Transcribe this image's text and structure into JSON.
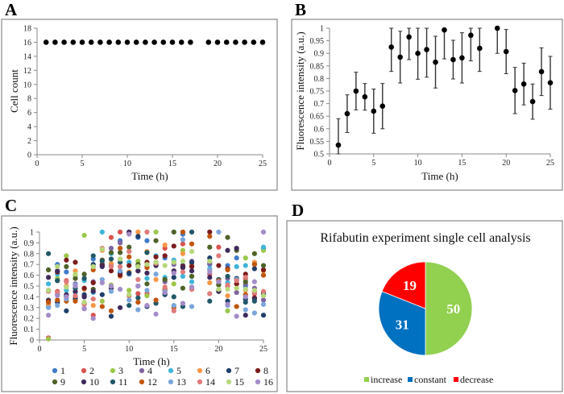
{
  "chart_data": [
    {
      "panel": "A",
      "type": "scatter",
      "xlabel": "Time (h)",
      "ylabel": "Cell count",
      "xlim": [
        0,
        25
      ],
      "ylim": [
        0,
        18
      ],
      "xticks": [
        0,
        5,
        10,
        15,
        20,
        25
      ],
      "yticks": [
        0,
        2,
        4,
        6,
        8,
        10,
        12,
        14,
        16,
        18
      ],
      "x": [
        1,
        2,
        3,
        4,
        5,
        6,
        7,
        8,
        9,
        10,
        11,
        12,
        13,
        14,
        15,
        16,
        17,
        19,
        20,
        21,
        22,
        23,
        24,
        25
      ],
      "y": [
        16,
        16,
        16,
        16,
        16,
        16,
        16,
        16,
        16,
        16,
        16,
        16,
        16,
        16,
        16,
        16,
        16,
        16,
        16,
        16,
        16,
        16,
        16,
        16
      ],
      "color": "#000000"
    },
    {
      "panel": "B",
      "type": "scatter",
      "xlabel": "Time (h)",
      "ylabel": "Fluorescence intensity (a.u.)",
      "xlim": [
        0,
        25
      ],
      "ylim": [
        0.5,
        1
      ],
      "xticks": [
        0,
        5,
        10,
        15,
        20,
        25
      ],
      "yticks": [
        "0.5",
        "0.55",
        "0.6",
        "0.65",
        "0.7",
        "0.75",
        "0.8",
        "0.85",
        "0.9",
        "0.95",
        "1"
      ],
      "x": [
        1,
        2,
        3,
        4,
        5,
        6,
        7,
        8,
        9,
        10,
        11,
        12,
        13,
        14,
        15,
        16,
        17,
        19,
        20,
        21,
        22,
        23,
        24,
        25
      ],
      "y": [
        0.535,
        0.66,
        0.75,
        0.727,
        0.67,
        0.69,
        0.925,
        0.885,
        0.965,
        0.9,
        0.915,
        0.865,
        0.993,
        0.875,
        0.882,
        0.972,
        0.92,
        1.0,
        0.907,
        0.752,
        0.778,
        0.708,
        0.827,
        0.783
      ],
      "error": [
        0.105,
        0.075,
        0.075,
        0.053,
        0.088,
        0.09,
        0.097,
        0.103,
        0.09,
        0.103,
        0.11,
        0.103,
        0.115,
        0.077,
        0.1,
        0.102,
        0.092,
        0.1,
        0.088,
        0.092,
        0.083,
        0.07,
        0.095,
        0.105
      ],
      "color": "#000000"
    },
    {
      "panel": "C",
      "type": "scatter",
      "xlabel": "Time (h)",
      "ylabel": "Fluorescence intensity (a.u.)",
      "xlim": [
        0,
        25
      ],
      "ylim": [
        0,
        1
      ],
      "xticks": [
        0,
        5,
        10,
        15,
        20,
        25
      ],
      "yticks": [
        "0",
        "0.1",
        "0.2",
        "0.3",
        "0.4",
        "0.5",
        "0.6",
        "0.7",
        "0.8",
        "0.9",
        "1"
      ],
      "x": [
        1,
        2,
        3,
        4,
        5,
        6,
        7,
        8,
        9,
        10,
        11,
        12,
        13,
        14,
        15,
        16,
        17,
        19,
        20,
        21,
        22,
        23,
        24,
        25
      ],
      "legend_position": "bottom",
      "series": [
        {
          "name": "1",
          "color": "#3f7bc9",
          "values": [
            0.31,
            0.7,
            0.63,
            0.48,
            0.4,
            0.75,
            0.7,
            0.7,
            0.92,
            0.61,
            0.95,
            0.92,
            0.7,
            0.76,
            0.72,
            0.98,
            0.7,
            0.7,
            0.56,
            0.69,
            0.76,
            0.5,
            0.7,
            0.85
          ]
        },
        {
          "name": "2",
          "color": "#d9534f",
          "values": [
            0.02,
            0.45,
            0.55,
            0.4,
            0.48,
            0.23,
            0.74,
            0.95,
            1.0,
            0.41,
            0.43,
            0.43,
            0.72,
            0.85,
            0.62,
            0.89,
            0.47,
            0.61,
            0.86,
            0.5,
            0.57,
            0.57,
            0.43,
            0.44
          ]
        },
        {
          "name": "3",
          "color": "#9bc74b",
          "values": [
            0.01,
            0.57,
            0.78,
            0.6,
            0.97,
            0.68,
            0.36,
            0.51,
            0.75,
            0.46,
            0.73,
            0.41,
            1.0,
            0.55,
            0.52,
            0.83,
            0.59,
            0.72,
            0.46,
            0.27,
            0.48,
            0.76,
            0.45,
            0.83
          ]
        },
        {
          "name": "4",
          "color": "#8064a2",
          "values": [
            0.46,
            0.42,
            0.41,
            0.52,
            0.29,
            0.54,
            0.69,
            0.85,
            0.9,
            0.99,
            0.5,
            0.68,
            0.72,
            0.54,
            0.7,
            0.67,
            0.73,
            0.71,
            0.52,
            0.57,
            0.44,
            0.52,
            0.48,
            0.37
          ]
        },
        {
          "name": "5",
          "color": "#3fb5d9",
          "values": [
            0.52,
            0.61,
            0.46,
            0.44,
            0.55,
            0.44,
            1.0,
            0.8,
            0.63,
            0.72,
            0.68,
            0.57,
            0.78,
            0.58,
            0.74,
            0.59,
            0.54,
            0.66,
            0.56,
            0.53,
            0.68,
            0.69,
            0.72,
            0.86
          ]
        },
        {
          "name": "6",
          "color": "#f79646",
          "values": [
            0.33,
            0.36,
            0.5,
            0.64,
            0.47,
            0.32,
            0.83,
            0.71,
            0.59,
            0.63,
            1.0,
            0.82,
            0.56,
            0.88,
            0.64,
            0.8,
            0.69,
            0.53,
            0.55,
            0.41,
            0.52,
            0.46,
            0.72,
            0.64
          ]
        },
        {
          "name": "7",
          "color": "#1f3f6b",
          "values": [
            0.37,
            0.35,
            0.27,
            0.38,
            0.42,
            0.7,
            0.42,
            0.22,
            0.62,
            0.62,
            0.96,
            0.31,
            0.69,
            0.42,
            0.58,
            0.69,
            0.72,
            0.76,
            0.45,
            0.36,
            0.55,
            0.38,
            0.66,
            0.23
          ]
        },
        {
          "name": "8",
          "color": "#7b1c1c",
          "values": [
            0.36,
            0.63,
            0.74,
            0.72,
            0.48,
            0.53,
            0.7,
            0.64,
            0.6,
            0.69,
            0.64,
            0.72,
            0.77,
            0.78,
            0.87,
            0.68,
            0.68,
            1.0,
            0.69,
            0.66,
            0.52,
            0.61,
            0.39,
            0.65
          ]
        },
        {
          "name": "9",
          "color": "#4f6228",
          "values": [
            0.65,
            0.55,
            0.68,
            0.57,
            0.61,
            0.47,
            0.74,
            0.81,
            0.81,
            0.86,
            0.7,
            0.52,
            0.92,
            0.56,
            1.0,
            0.48,
            0.59,
            0.86,
            0.51,
            0.95,
            0.83,
            0.54,
            0.8,
            0.69
          ]
        },
        {
          "name": "10",
          "color": "#3f2a5c",
          "values": [
            0.58,
            0.64,
            0.42,
            0.45,
            0.4,
            0.45,
            0.68,
            0.48,
            0.3,
            1.0,
            0.64,
            0.62,
            0.69,
            0.46,
            0.64,
            0.67,
            0.64,
            0.58,
            0.45,
            0.83,
            0.85,
            0.23,
            0.38,
            0.42
          ]
        },
        {
          "name": "11",
          "color": "#215868",
          "values": [
            0.8,
            0.55,
            0.4,
            0.48,
            0.57,
            0.78,
            0.73,
            0.75,
            0.72,
            0.32,
            0.39,
            0.81,
            0.34,
            0.43,
            0.4,
            0.31,
            1.0,
            0.36,
            0.56,
            0.59,
            0.57,
            0.35,
            0.36,
            0.43
          ]
        },
        {
          "name": "12",
          "color": "#c0560c",
          "values": [
            0.35,
            0.37,
            0.36,
            0.36,
            0.34,
            0.65,
            0.31,
            0.27,
            0.85,
            0.77,
            0.35,
            0.67,
            0.37,
            0.47,
            0.3,
            1.0,
            0.89,
            0.96,
            0.55,
            0.65,
            0.31,
            0.42,
            0.7,
            0.6
          ]
        },
        {
          "name": "13",
          "color": "#7aa6dc",
          "values": [
            0.3,
            0.32,
            0.38,
            0.51,
            0.33,
            0.68,
            0.56,
            0.45,
            0.64,
            0.37,
            0.28,
            0.46,
            0.61,
            0.45,
            0.32,
            0.93,
            0.31,
            0.65,
            1.0,
            0.32,
            0.56,
            0.28,
            0.25,
            0.33
          ]
        },
        {
          "name": "14",
          "color": "#e07b7b",
          "values": [
            0.45,
            0.44,
            0.54,
            0.41,
            0.33,
            0.38,
            0.85,
            0.68,
            0.68,
            0.82,
            0.56,
            1.0,
            0.71,
            0.49,
            0.27,
            0.63,
            0.47,
            0.43,
            0.78,
            0.51,
            0.55,
            0.58,
            0.44,
            0.45
          ]
        },
        {
          "name": "15",
          "color": "#b7d77a",
          "values": [
            0.46,
            0.68,
            0.49,
            0.61,
            0.35,
            0.68,
            0.84,
            0.5,
            0.75,
            0.42,
            0.68,
            0.7,
            0.72,
            0.69,
            0.72,
            0.73,
            0.82,
            0.73,
            0.47,
            0.47,
            0.48,
            0.47,
            0.46,
            0.41
          ]
        },
        {
          "name": "16",
          "color": "#a48cc8",
          "values": [
            0.23,
            0.41,
            0.4,
            0.5,
            0.29,
            0.2,
            0.53,
            0.5,
            0.47,
            0.98,
            0.5,
            0.32,
            0.24,
            0.44,
            0.62,
            0.34,
            0.49,
            0.63,
            0.54,
            0.33,
            0.22,
            0.4,
            0.54,
            1.0
          ]
        }
      ]
    },
    {
      "panel": "D",
      "type": "pie",
      "title": "Rifabutin experiment single cell analysis",
      "legend_position": "bottom",
      "slices": [
        {
          "label": "increase",
          "value": 50,
          "color": "#92d050"
        },
        {
          "label": "constant",
          "value": 31,
          "color": "#0070c0"
        },
        {
          "label": "decrease",
          "value": 19,
          "color": "#ff0000"
        }
      ]
    }
  ],
  "panels": {
    "a": "A",
    "b": "B",
    "c": "C",
    "d": "D"
  }
}
